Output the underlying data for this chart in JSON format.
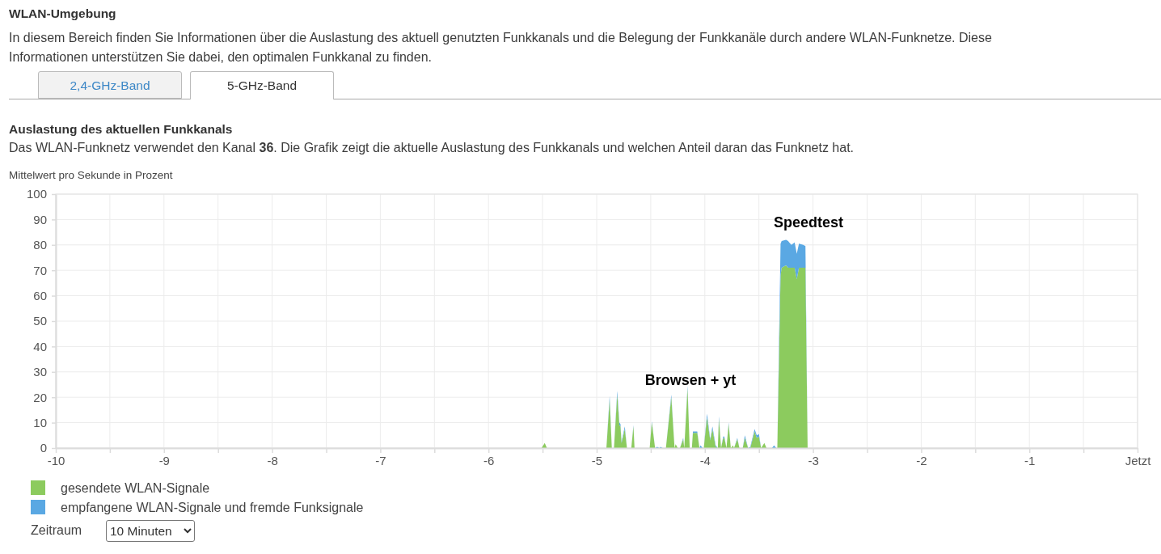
{
  "chart_data": {
    "type": "area",
    "stacked": true,
    "title": "WLAN-Umgebung",
    "subtitle": "In diesem Bereich finden Sie Informationen über die Auslastung des aktuell genutzten Funkkanals und die Belegung der Funkkanäle durch andere WLAN-Funknetze. Diese Informationen unterstützen Sie dabei, den optimalen Funkkanal zu finden.",
    "ylabel": "Mittelwert pro Sekunde in Prozent",
    "annotations": [
      "2,4-GHz-Band",
      "5-GHz-Band",
      "Auslastung des aktuellen Funkkanals",
      "Das WLAN-Funknetz verwendet den Kanal 36. Die Grafik zeigt die aktuelle Auslastung des Funkkanals und welchen Anteil daran das Funknetz hat.",
      "Speedtest",
      "Browsen + yt",
      "Zeitraum",
      "10 Minuten"
    ],
    "x": [
      -10,
      -5.51,
      -5.48,
      -5.46,
      -4.91,
      -4.88,
      -4.86,
      -4.84,
      -4.81,
      -4.79,
      -4.78,
      -4.77,
      -4.74,
      -4.72,
      -4.68,
      -4.66,
      -4.65,
      -4.51,
      -4.49,
      -4.46,
      -4.44,
      -4.42,
      -4.41,
      -4.39,
      -4.36,
      -4.31,
      -4.28,
      -4.27,
      -4.25,
      -4.23,
      -4.2,
      -4.19,
      -4.16,
      -4.14,
      -4.12,
      -4.11,
      -4.07,
      -4.05,
      -4.04,
      -4.02,
      -4.01,
      -3.98,
      -3.95,
      -3.93,
      -3.9,
      -3.88,
      -3.87,
      -3.85,
      -3.83,
      -3.82,
      -3.8,
      -3.78,
      -3.76,
      -3.74,
      -3.73,
      -3.7,
      -3.68,
      -3.65,
      -3.63,
      -3.6,
      -3.58,
      -3.54,
      -3.52,
      -3.5,
      -3.48,
      -3.45,
      -3.43,
      -3.38,
      -3.36,
      -3.34,
      -3.33,
      -3.3,
      -3.29,
      -3.25,
      -3.23,
      -3.22,
      -3.2,
      -3.17,
      -3.15,
      -3.13,
      -3.09,
      -3.07,
      -3.05,
      0
    ],
    "series": [
      {
        "name": "gesendete WLAN-Signale",
        "color": "#8ccb5e",
        "values": [
          0,
          0,
          2,
          0,
          0,
          19,
          0,
          0,
          21,
          9,
          8.5,
          2,
          7.5,
          0,
          0,
          8.5,
          0,
          0,
          10,
          0,
          0,
          0,
          0,
          0,
          0,
          20,
          0,
          1.5,
          0,
          0,
          3.5,
          0,
          23.5,
          0,
          0,
          6,
          6,
          0,
          0,
          0,
          0,
          12,
          3,
          7.5,
          0.5,
          0,
          11.5,
          0,
          4,
          4,
          0,
          9.5,
          0,
          1,
          0,
          3.5,
          0,
          0,
          4,
          0,
          0,
          6.5,
          4,
          4.5,
          0,
          2,
          0,
          0,
          0,
          0,
          0,
          68,
          71,
          72,
          71,
          71,
          71,
          71,
          66.5,
          71,
          71,
          71,
          0,
          0
        ]
      },
      {
        "name": "empfangene WLAN-Signale und fremde Funksignale",
        "color": "#5aa8e3",
        "values": [
          0,
          0,
          0,
          0,
          0,
          1.5,
          0,
          0,
          1.5,
          1,
          1,
          0.5,
          1,
          0,
          0,
          0.5,
          0,
          0,
          0.5,
          0,
          0.5,
          0,
          0.5,
          0,
          0,
          1,
          0,
          0,
          0,
          0,
          0.5,
          0,
          1,
          0,
          0,
          0.5,
          0.5,
          0,
          1,
          0,
          0,
          1.5,
          0.5,
          1,
          0.5,
          0,
          1,
          0,
          0.5,
          0.5,
          0,
          0.5,
          0,
          0,
          0,
          0.5,
          0,
          0,
          1,
          0,
          0.5,
          1,
          1,
          1,
          0,
          0,
          0,
          0,
          1,
          0,
          0,
          12.5,
          10.5,
          10,
          10.5,
          10,
          9,
          10,
          10,
          9.5,
          9,
          8.5,
          0,
          0
        ]
      }
    ],
    "xlim": [
      -10,
      0
    ],
    "xticks": [
      -10,
      {
        "value": -9.5,
        "label": null
      },
      -9,
      {
        "value": -8.5,
        "label": null
      },
      -8,
      {
        "value": -7.5,
        "label": null
      },
      -7,
      {
        "value": -6.5,
        "label": null
      },
      -6,
      {
        "value": -5.5,
        "label": null
      },
      -5,
      {
        "value": -4.5,
        "label": null
      },
      -4,
      {
        "value": -3.5,
        "label": null
      },
      -3,
      {
        "value": -2.5,
        "label": null
      },
      -2,
      {
        "value": -1.5,
        "label": null
      },
      -1,
      {
        "value": -0.5,
        "label": null
      },
      {
        "value": 0,
        "label": "Jetzt"
      }
    ],
    "ylim": [
      0,
      100
    ],
    "yticks": [
      0,
      10,
      20,
      30,
      40,
      50,
      60,
      70,
      80,
      90,
      100
    ],
    "grid": true,
    "legend": "bottom left"
  }
}
